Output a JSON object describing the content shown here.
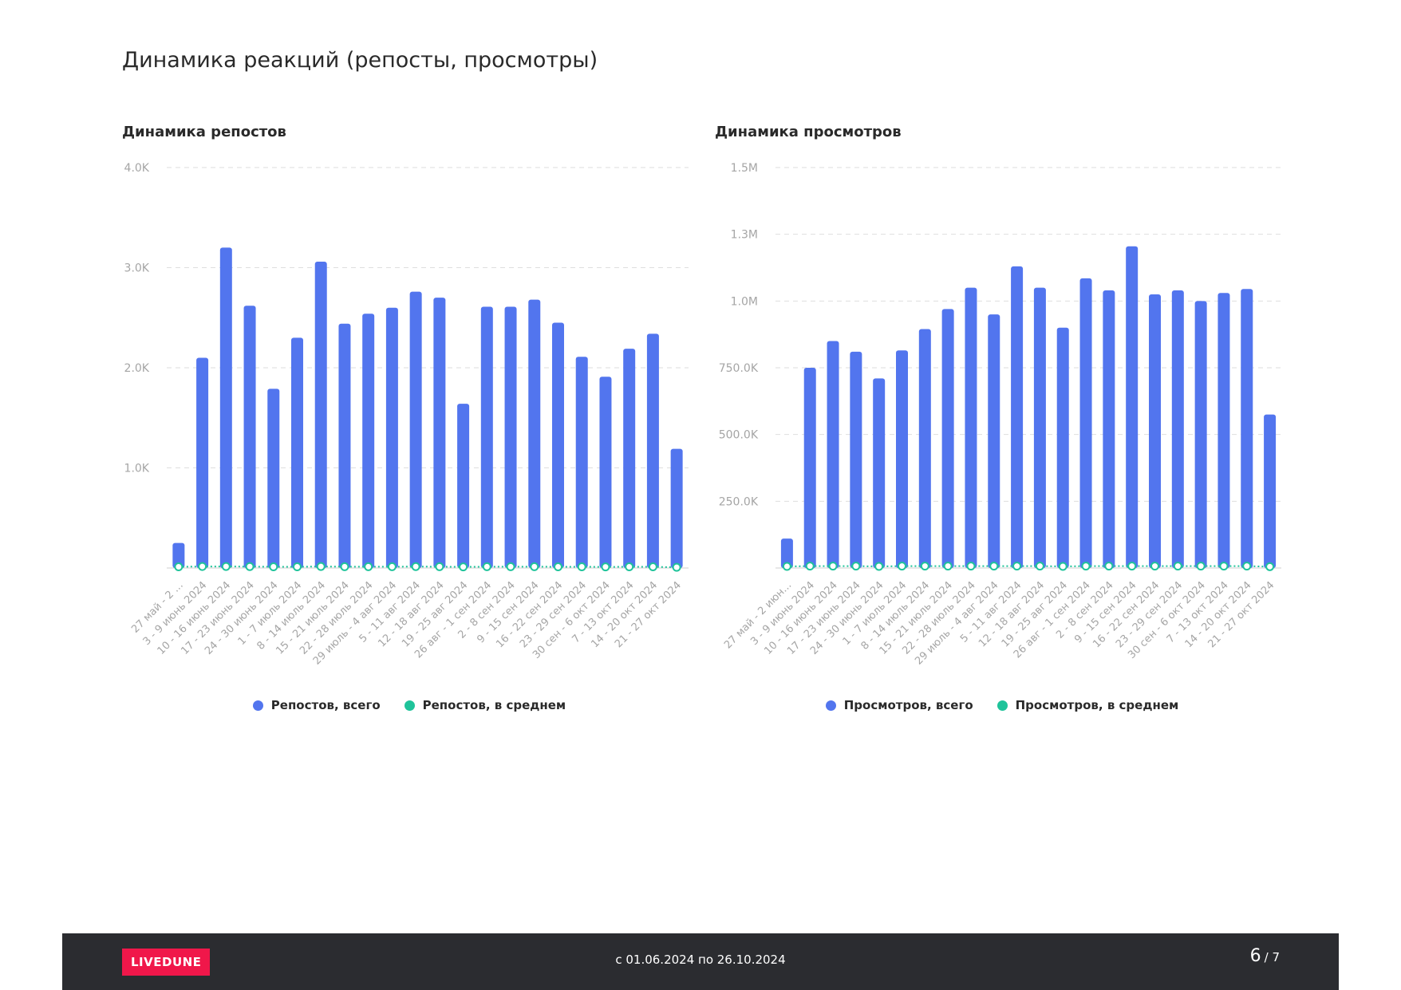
{
  "page": {
    "title": "Динамика реакций (репосты, просмотры)"
  },
  "colors": {
    "bar": "#5275ee",
    "avg": "#1fc39a",
    "grid": "#dedede",
    "tick": "#a5a5a5"
  },
  "chart_data": [
    {
      "type": "bar",
      "title": "Динамика репостов",
      "categories": [
        "27 май - 2 ...",
        "3 - 9 июнь 2024",
        "10 - 16 июнь 2024",
        "17 - 23 июнь 2024",
        "24 - 30 июнь 2024",
        "1 - 7 июль 2024",
        "8 - 14 июль 2024",
        "15 - 21 июль 2024",
        "22 - 28 июль 2024",
        "29 июль - 4 авг 2024",
        "5 - 11 авг 2024",
        "12 - 18 авг 2024",
        "19 - 25 авг 2024",
        "26 авг - 1 сен 2024",
        "2 - 8 сен 2024",
        "9 - 15 сен 2024",
        "16 - 22 сен 2024",
        "23 - 29 сен 2024",
        "30 сен - 6 окт 2024",
        "7 - 13 окт 2024",
        "14 - 20 окт 2024",
        "21 - 27 окт 2024"
      ],
      "series": [
        {
          "name": "Репостов, всего",
          "values": [
            250,
            2100,
            3200,
            2620,
            1790,
            2300,
            3060,
            2440,
            2540,
            2600,
            2760,
            2700,
            1640,
            2610,
            2610,
            2680,
            2450,
            2110,
            1910,
            2190,
            2340,
            1190
          ]
        },
        {
          "name": "Репостов, в среднем",
          "values": [
            12,
            15,
            15,
            14,
            12,
            12,
            15,
            13,
            13,
            13,
            14,
            13,
            11,
            13,
            13,
            13,
            12,
            12,
            11,
            12,
            12,
            7
          ]
        }
      ],
      "yticks": [
        "1.0K",
        "2.0K",
        "3.0K",
        "4.0K"
      ],
      "ytick_values": [
        1000,
        2000,
        3000,
        4000
      ],
      "ylim": [
        0,
        4000
      ],
      "grid": true,
      "legend": "bottom"
    },
    {
      "type": "bar",
      "title": "Динамика просмотров",
      "categories": [
        "27 май - 2 июн...",
        "3 - 9 июнь 2024",
        "10 - 16 июнь 2024",
        "17 - 23 июнь 2024",
        "24 - 30 июнь 2024",
        "1 - 7 июль 2024",
        "8 - 14 июль 2024",
        "15 - 21 июль 2024",
        "22 - 28 июль 2024",
        "29 июль - 4 авг 2024",
        "5 - 11 авг 2024",
        "12 - 18 авг 2024",
        "19 - 25 авг 2024",
        "26 авг - 1 сен 2024",
        "2 - 8 сен 2024",
        "9 - 15 сен 2024",
        "16 - 22 сен 2024",
        "23 - 29 сен 2024",
        "30 сен - 6 окт 2024",
        "7 - 13 окт 2024",
        "14 - 20 окт 2024",
        "21 - 27 окт 2024"
      ],
      "series": [
        {
          "name": "Просмотров, всего",
          "values": [
            110000,
            750000,
            850000,
            810000,
            710000,
            815000,
            895000,
            970000,
            1050000,
            950000,
            1130000,
            1050000,
            900000,
            1085000,
            1040000,
            1205000,
            1025000,
            1040000,
            1000000,
            1030000,
            1045000,
            575000
          ]
        },
        {
          "name": "Просмотров, в среднем",
          "values": [
            6000,
            7000,
            7000,
            7000,
            6000,
            7000,
            7000,
            7000,
            7000,
            7000,
            7000,
            7000,
            6000,
            7000,
            7000,
            7000,
            7000,
            7000,
            7000,
            7000,
            7000,
            5000
          ]
        }
      ],
      "yticks": [
        "250.0K",
        "500.0K",
        "750.0K",
        "1.0M",
        "1.3M",
        "1.5M"
      ],
      "ytick_values": [
        250000,
        500000,
        750000,
        1000000,
        1250000,
        1500000
      ],
      "ylim": [
        0,
        1500000
      ],
      "grid": true,
      "legend": "bottom"
    }
  ],
  "footer": {
    "logo": "LIVEDUNE",
    "date_range": "с 01.06.2024 по 26.10.2024",
    "page_current": "6",
    "page_total": "/ 7"
  }
}
